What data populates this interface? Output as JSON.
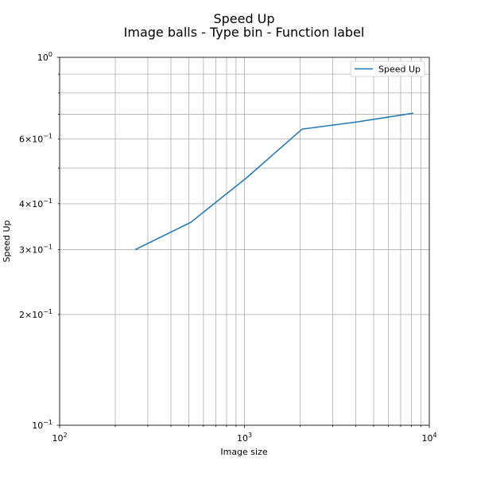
{
  "chart_data": {
    "type": "line",
    "title_lines": [
      "Speed Up",
      "Image balls - Type bin - Function label"
    ],
    "xlabel": "Image size",
    "ylabel": "Speed Up",
    "xscale": "log",
    "yscale": "log",
    "xlim": [
      100,
      10000
    ],
    "ylim": [
      0.1,
      1.0
    ],
    "grid": "both-major-and-minor",
    "legend_position": "top-right",
    "x_major_ticks": [
      {
        "value": 100,
        "base": "10",
        "exp": "2"
      },
      {
        "value": 1000,
        "base": "10",
        "exp": "3"
      },
      {
        "value": 10000,
        "base": "10",
        "exp": "4"
      }
    ],
    "y_major_ticks": [
      {
        "value": 0.1,
        "base": "10",
        "exp": "−1"
      },
      {
        "value": 1.0,
        "base": "10",
        "exp": "0"
      }
    ],
    "y_minor_labeled_ticks": [
      {
        "value": 0.2,
        "mant": "2",
        "base": "10",
        "exp": "−1"
      },
      {
        "value": 0.3,
        "mant": "3",
        "base": "10",
        "exp": "−1"
      },
      {
        "value": 0.4,
        "mant": "4",
        "base": "10",
        "exp": "−1"
      },
      {
        "value": 0.6,
        "mant": "6",
        "base": "10",
        "exp": "−1"
      }
    ],
    "series": [
      {
        "name": "Speed Up",
        "color": "#1f77b4",
        "x": [
          256,
          512,
          1024,
          2048,
          4096,
          8192
        ],
        "y": [
          0.3,
          0.356,
          0.47,
          0.638,
          0.668,
          0.705
        ]
      }
    ]
  }
}
